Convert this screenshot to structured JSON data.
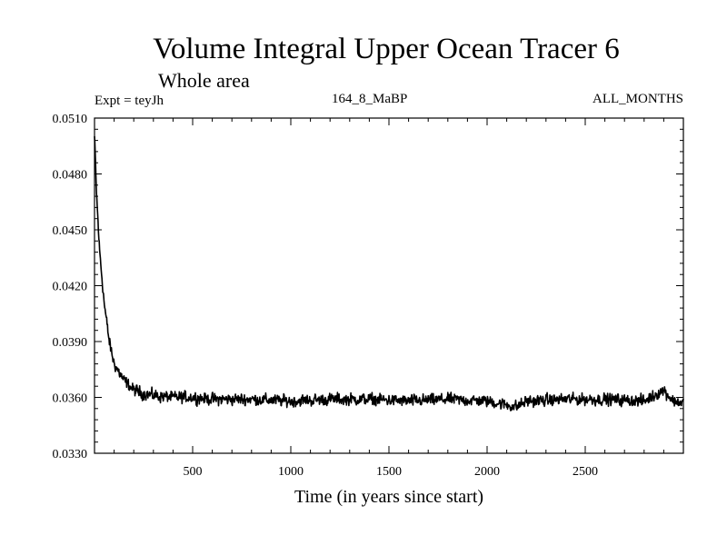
{
  "header": {
    "title": "Volume Integral Upper Ocean Tracer 6",
    "subtitle": "Whole area",
    "expt": "Expt = teyJh",
    "run": "164_8_MaBP",
    "months": "ALL_MONTHS"
  },
  "chart_data": {
    "type": "line",
    "title": "Volume Integral Upper Ocean Tracer 6",
    "subtitle": "Whole area",
    "xlabel": "Time (in years since start)",
    "ylabel": "",
    "xlim": [
      0,
      3000
    ],
    "ylim": [
      0.033,
      0.051
    ],
    "x_ticks": [
      500,
      1000,
      1500,
      2000,
      2500
    ],
    "x_tick_labels": [
      "500",
      "1000",
      "1500",
      "2000",
      "2500"
    ],
    "y_ticks": [
      0.033,
      0.036,
      0.039,
      0.042,
      0.045,
      0.048,
      0.051
    ],
    "y_tick_labels": [
      "0.0330",
      "0.0360",
      "0.0390",
      "0.0420",
      "0.0450",
      "0.0480",
      "0.0510"
    ],
    "grid": false,
    "series": [
      {
        "name": "Volume Integral Upper Ocean Tracer 6",
        "x": [
          0,
          10,
          25,
          50,
          75,
          100,
          150,
          200,
          250,
          300,
          400,
          500,
          600,
          800,
          1000,
          1200,
          1400,
          1600,
          1800,
          2000,
          2150,
          2200,
          2400,
          2600,
          2800,
          2900,
          2950,
          3000
        ],
        "y": [
          0.05,
          0.047,
          0.044,
          0.041,
          0.039,
          0.0378,
          0.0369,
          0.0364,
          0.0362,
          0.0361,
          0.036,
          0.036,
          0.0359,
          0.0359,
          0.0358,
          0.0359,
          0.0359,
          0.0358,
          0.0359,
          0.0358,
          0.0355,
          0.0358,
          0.0359,
          0.0359,
          0.0358,
          0.0364,
          0.0358,
          0.0357
        ],
        "noise_amplitude": 0.0004
      }
    ]
  }
}
